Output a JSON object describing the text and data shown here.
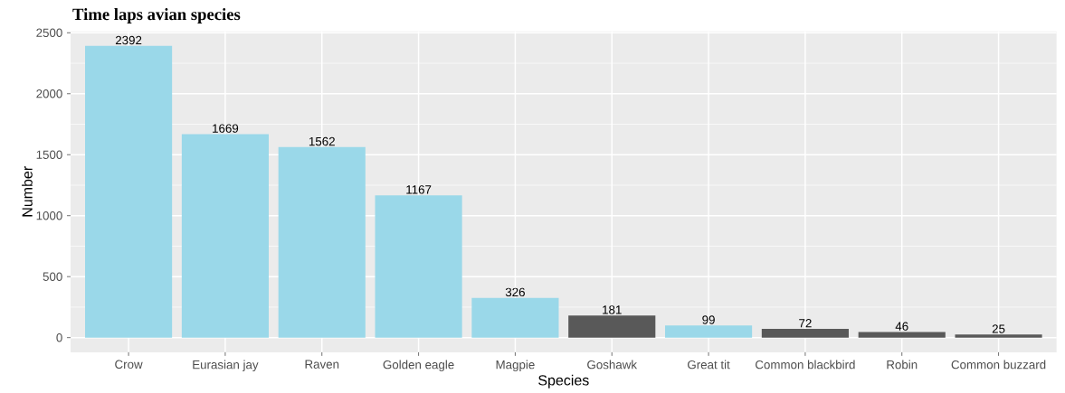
{
  "chart_data": {
    "type": "bar",
    "title": "Time laps avian species",
    "xlabel": "Species",
    "ylabel": "Number",
    "categories": [
      "Crow",
      "Eurasian jay",
      "Raven",
      "Golden eagle",
      "Magpie",
      "Goshawk",
      "Great tit",
      "Common blackbird",
      "Robin",
      "Common buzzard"
    ],
    "values": [
      2392,
      1669,
      1562,
      1167,
      326,
      181,
      99,
      72,
      46,
      25
    ],
    "colors": [
      "#9ad8e9",
      "#9ad8e9",
      "#9ad8e9",
      "#9ad8e9",
      "#9ad8e9",
      "#595959",
      "#9ad8e9",
      "#595959",
      "#595959",
      "#595959"
    ],
    "ylim": [
      -120,
      2512
    ],
    "yticks": [
      0,
      500,
      1000,
      1500,
      2000,
      2500
    ],
    "grid": true,
    "data_labels": true
  }
}
